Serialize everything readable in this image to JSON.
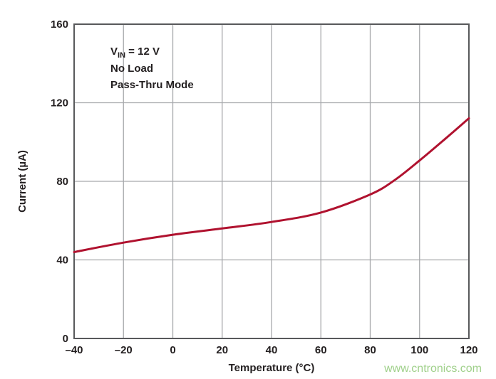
{
  "chart_data": {
    "type": "line",
    "title": "",
    "xlabel": "Temperature (°C)",
    "ylabel": "Current (µA)",
    "xlim": [
      -40,
      120
    ],
    "ylim": [
      0,
      160
    ],
    "xticks": [
      -40,
      -20,
      0,
      20,
      40,
      60,
      80,
      100,
      120
    ],
    "xtick_labels": [
      "–40",
      "–20",
      "0",
      "20",
      "40",
      "60",
      "80",
      "100",
      "120"
    ],
    "yticks": [
      0,
      40,
      80,
      120,
      160
    ],
    "ytick_labels": [
      "0",
      "40",
      "80",
      "120",
      "160"
    ],
    "grid": true,
    "legend": "none",
    "annotations": {
      "vin_main": "V",
      "vin_sub": "IN",
      "vin_rest": " = 12 V",
      "line2": "No Load",
      "line3": "Pass-Thru Mode"
    },
    "series": [
      {
        "color": "#b0122f",
        "x": [
          -40,
          -20,
          0,
          20,
          40,
          60,
          80,
          90,
          100,
          110,
          120
        ],
        "y": [
          44.0,
          48.8,
          52.8,
          56.0,
          59.3,
          64.1,
          73.3,
          80.7,
          90.6,
          101.2,
          112.1
        ]
      }
    ]
  },
  "watermark": "www.cntronics.com"
}
